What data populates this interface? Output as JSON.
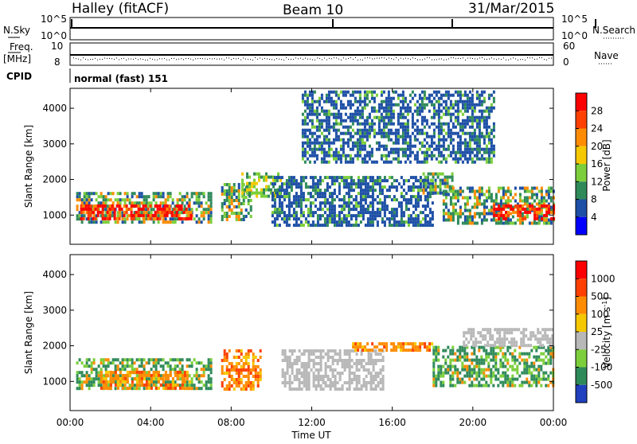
{
  "header": {
    "station": "Halley (fitACF)",
    "beam": "Beam 10",
    "date": "31/Mar/2015"
  },
  "status_panels": {
    "nsky_label": "N.Sky",
    "nsky_ticks": [
      "10^5",
      "10^0"
    ],
    "nsearch_label": "N.Search",
    "nsearch_ticks": [
      "10^5",
      "10^0"
    ],
    "freq_label_1": "Freq.",
    "freq_label_2": "[MHz]",
    "freq_ticks": [
      "10",
      "8"
    ],
    "nave_label": "Nave",
    "nave_ticks": [
      "60",
      "0"
    ],
    "cpid_label": "CPID",
    "cpid_value": "normal (fast) 151"
  },
  "colors": {
    "power": [
      "#0000ff",
      "#1d4fa6",
      "#2f8a5a",
      "#7ccf3a",
      "#f5c800",
      "#ff8c00",
      "#ff4000",
      "#ff0000"
    ],
    "velocity": [
      "#2040c0",
      "#2f8a5a",
      "#7ccf3a",
      "#b8b8b8",
      "#f5c800",
      "#ff8c00",
      "#ff4000",
      "#ff0000"
    ],
    "ground_scatter": "#b8b8b8"
  },
  "chart_data": [
    {
      "type": "heatmap",
      "name": "power",
      "ylabel": "Slant Range [km]",
      "ylim": [
        180,
        4560
      ],
      "yticks": [
        "1000",
        "2000",
        "3000",
        "4000"
      ],
      "xlim": [
        "00:00",
        "24:00"
      ],
      "colorbar_label": "Power [dB]",
      "colorbar_ticks": [
        "4",
        "8",
        "12",
        "16",
        "20",
        "24",
        "28"
      ],
      "colorbar_range": [
        0,
        32
      ],
      "regions": [
        {
          "t0": 0.3,
          "t1": 7.0,
          "r0": 800,
          "r1": 1650,
          "level": "high"
        },
        {
          "t0": 0.5,
          "t1": 6.0,
          "r0": 900,
          "r1": 1300,
          "level": "very_high"
        },
        {
          "t0": 7.5,
          "t1": 9.0,
          "r0": 850,
          "r1": 1900,
          "level": "high"
        },
        {
          "t0": 8.5,
          "t1": 10.5,
          "r0": 1500,
          "r1": 2200,
          "level": "medium"
        },
        {
          "t0": 10.0,
          "t1": 18.0,
          "r0": 700,
          "r1": 2100,
          "level": "low"
        },
        {
          "t0": 17.5,
          "t1": 19.0,
          "r0": 1600,
          "r1": 2200,
          "level": "high"
        },
        {
          "t0": 18.5,
          "t1": 24.0,
          "r0": 800,
          "r1": 1800,
          "level": "high"
        },
        {
          "t0": 21.0,
          "t1": 24.0,
          "r0": 900,
          "r1": 1300,
          "level": "very_high"
        },
        {
          "t0": 11.5,
          "t1": 21.0,
          "r0": 2500,
          "r1": 4500,
          "level": "low"
        }
      ]
    },
    {
      "type": "heatmap",
      "name": "velocity",
      "ylabel": "Slant Range [km]",
      "xlabel": "Time UT",
      "ylim": [
        180,
        4560
      ],
      "yticks": [
        "1000",
        "2000",
        "3000",
        "4000"
      ],
      "xticks": [
        "00:00",
        "04:00",
        "08:00",
        "12:00",
        "16:00",
        "20:00",
        "00:00"
      ],
      "colorbar_label": "Velocity [m s^-1]",
      "colorbar_ticks": [
        "1000",
        "500",
        "100",
        "25",
        "-25",
        "-100",
        "-500",
        "-1000"
      ],
      "regions": [
        {
          "t0": 0.3,
          "t1": 7.0,
          "r0": 800,
          "r1": 1650,
          "velocity": "100 to 500"
        },
        {
          "t0": 1.5,
          "t1": 6.0,
          "r0": 850,
          "r1": 1300,
          "velocity": "-100 to -500"
        },
        {
          "t0": 7.5,
          "t1": 9.5,
          "r0": 800,
          "r1": 1900,
          "velocity": "-100 to -500"
        },
        {
          "t0": 10.5,
          "t1": 15.5,
          "r0": 800,
          "r1": 1900,
          "velocity": "ground scatter"
        },
        {
          "t0": 14.0,
          "t1": 18.0,
          "r0": 1850,
          "r1": 2100,
          "velocity": "-100 to -500"
        },
        {
          "t0": 18.0,
          "t1": 24.0,
          "r0": 900,
          "r1": 2000,
          "velocity": "100 to 500"
        },
        {
          "t0": 19.5,
          "t1": 24.0,
          "r0": 2000,
          "r1": 2500,
          "velocity": "ground scatter"
        }
      ]
    }
  ]
}
